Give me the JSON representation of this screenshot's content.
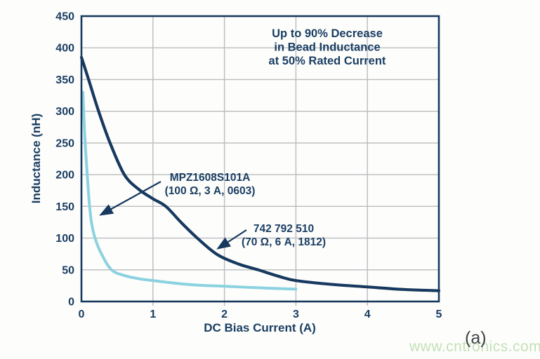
{
  "figure": {
    "watermark": "www.cntronics.com",
    "panel_label": "(a)"
  },
  "chart_data": {
    "type": "line",
    "title": "",
    "xlabel": "DC Bias Current (A)",
    "ylabel": "Inductance (nH)",
    "xlim": [
      0,
      5
    ],
    "ylim": [
      0,
      450
    ],
    "x_ticks": [
      0,
      1,
      2,
      3,
      4,
      5
    ],
    "y_ticks": [
      0,
      50,
      100,
      150,
      200,
      250,
      300,
      350,
      400,
      450
    ],
    "grid": true,
    "legend_position": "none",
    "annotation": {
      "lines": [
        "Up to 90% Decrease",
        "in Bead Inductance",
        "at 50% Rated Current"
      ]
    },
    "series": [
      {
        "name": "742 792 510 (70 Ω, 6 A, 1812)",
        "label_lines": [
          "742 792 510",
          "(70 Ω, 6 A, 1812)"
        ],
        "color": "#17395f",
        "stroke_width": 4.2,
        "points": [
          [
            0,
            385
          ],
          [
            0.1,
            350
          ],
          [
            0.24,
            300
          ],
          [
            0.4,
            250
          ],
          [
            0.6,
            200
          ],
          [
            0.8,
            177
          ],
          [
            1.0,
            162
          ],
          [
            1.18,
            150
          ],
          [
            1.4,
            124
          ],
          [
            1.62,
            100
          ],
          [
            1.9,
            74
          ],
          [
            2.2,
            59
          ],
          [
            2.47,
            50
          ],
          [
            2.75,
            40
          ],
          [
            3.0,
            33
          ],
          [
            3.5,
            27
          ],
          [
            4.0,
            23
          ],
          [
            4.5,
            19
          ],
          [
            5.0,
            17
          ]
        ]
      },
      {
        "name": "MPZ1608S101A (100 Ω, 3 A, 0603)",
        "label_lines": [
          "MPZ1608S101A",
          "(100 Ω, 3 A, 0603)"
        ],
        "color": "#8bd2e0",
        "stroke_width": 4.0,
        "points": [
          [
            0.02,
            330
          ],
          [
            0.04,
            275
          ],
          [
            0.06,
            235
          ],
          [
            0.09,
            185
          ],
          [
            0.11,
            155
          ],
          [
            0.14,
            125
          ],
          [
            0.19,
            100
          ],
          [
            0.28,
            75
          ],
          [
            0.42,
            50
          ],
          [
            0.6,
            41
          ],
          [
            0.8,
            36
          ],
          [
            1.0,
            33
          ],
          [
            1.3,
            29
          ],
          [
            1.6,
            26
          ],
          [
            2.0,
            24
          ],
          [
            2.5,
            21.5
          ],
          [
            3.0,
            19.5
          ]
        ]
      }
    ]
  },
  "colors": {
    "navy": "#17395f",
    "text": "#1a3e63",
    "light_blue": "#8bd2e0",
    "gridline": "#b9bcbe",
    "background": "#fdfdfb",
    "watermark_green": "#c4e1b8",
    "panel_label_gray": "#3f4347"
  }
}
